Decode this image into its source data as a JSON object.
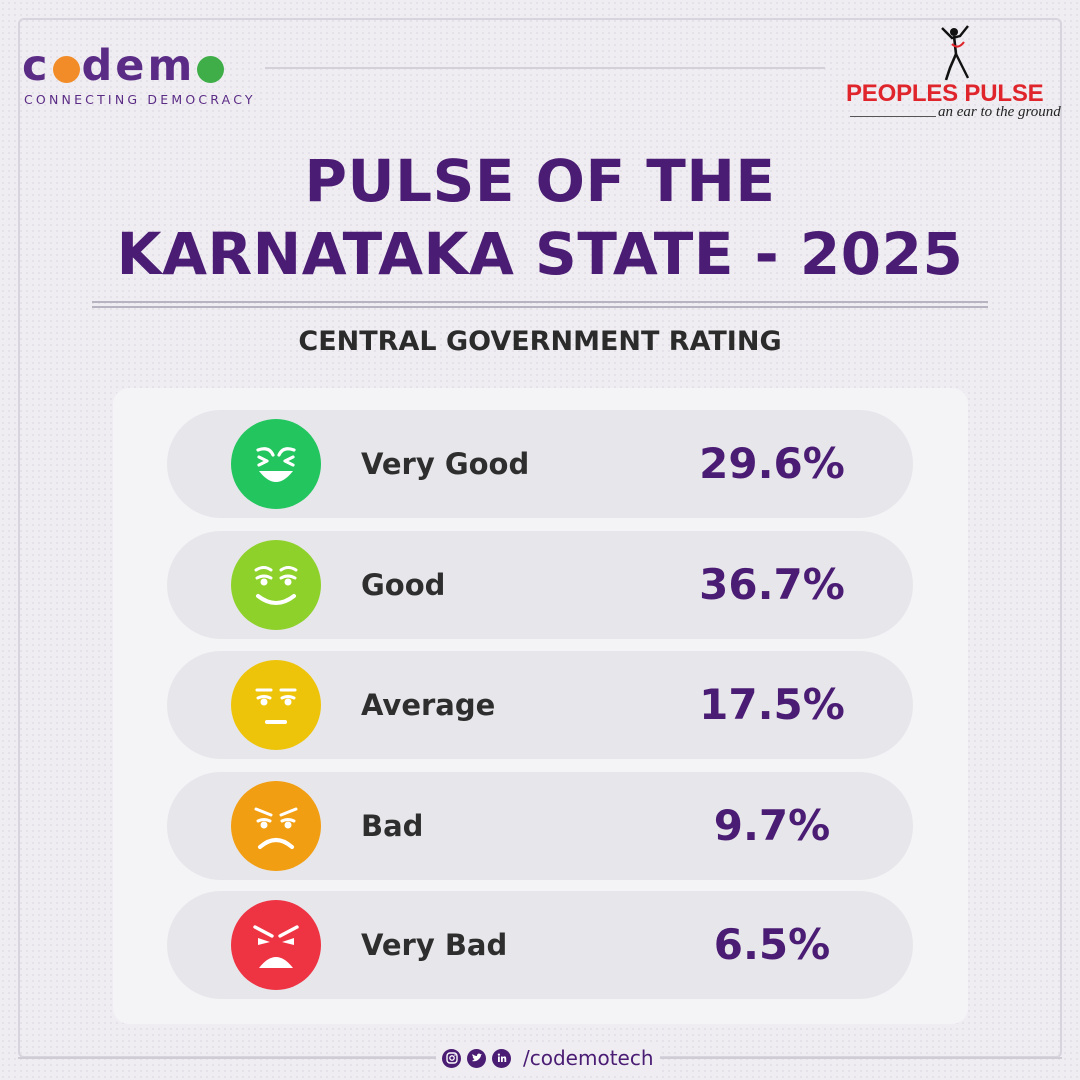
{
  "brand": {
    "codemo_name": "codemo",
    "codemo_tagline": "CONNECTING DEMOCRACY",
    "partner_name": "PEOPLES PULSE",
    "partner_tagline": "an ear to the ground"
  },
  "title": {
    "line1": "PULSE OF THE",
    "line2": "KARNATAKA STATE - 2025"
  },
  "subtitle": "CENTRAL GOVERNMENT RATING",
  "ratings": [
    {
      "label": "Very Good",
      "value": "29.6%",
      "icon": "laughing-face-icon",
      "color": "#22c55e"
    },
    {
      "label": "Good",
      "value": "36.7%",
      "icon": "smiling-face-icon",
      "color": "#8fd12b"
    },
    {
      "label": "Average",
      "value": "17.5%",
      "icon": "neutral-face-icon",
      "color": "#eec40a"
    },
    {
      "label": "Bad",
      "value": "9.7%",
      "icon": "frowning-face-icon",
      "color": "#f29e12"
    },
    {
      "label": "Very Bad",
      "value": "6.5%",
      "icon": "angry-face-icon",
      "color": "#ee3342"
    }
  ],
  "footer": {
    "handle": "/codemotech",
    "icons": [
      "instagram-icon",
      "twitter-icon",
      "linkedin-icon"
    ]
  },
  "colors": {
    "primary_purple": "#4a1c73",
    "codemo_orange": "#f28c28",
    "codemo_green": "#3fae49",
    "partner_red": "#e0242b"
  }
}
